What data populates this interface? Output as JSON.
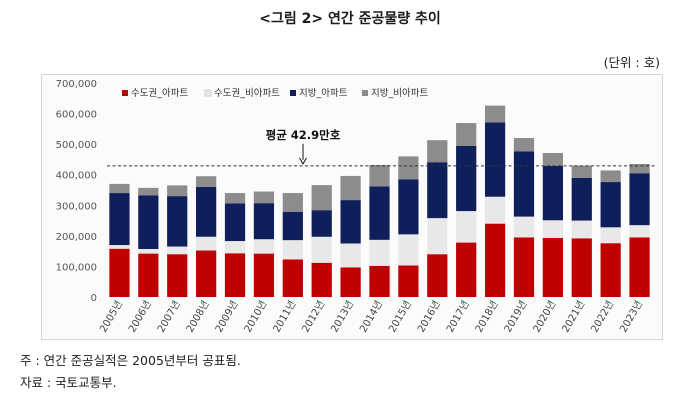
{
  "figure": {
    "title": "<그림 2> 연간 준공물량 추이",
    "unit": "(단위 : 호)",
    "note": "주 : 연간 준공실적은 2005년부터 공표됨.",
    "source": "자료 : 국토교통부."
  },
  "chart_data": {
    "type": "bar",
    "stacked": true,
    "title": "<그림 2> 연간 준공물량 추이",
    "xlabel": "",
    "ylabel": "",
    "ylim": [
      0,
      700000
    ],
    "yticks": [
      0,
      100000,
      200000,
      300000,
      400000,
      500000,
      600000,
      700000
    ],
    "ytick_labels": [
      "0",
      "100,000",
      "200,000",
      "300,000",
      "400,000",
      "500,000",
      "600,000",
      "700,000"
    ],
    "categories": [
      "2005년",
      "2006년",
      "2007년",
      "2008년",
      "2009년",
      "2010년",
      "2011년",
      "2012년",
      "2013년",
      "2014년",
      "2015년",
      "2016년",
      "2017년",
      "2018년",
      "2019년",
      "2020년",
      "2021년",
      "2022년",
      "2023년"
    ],
    "series": [
      {
        "name": "수도권_아파트",
        "color": "#c00000",
        "values": [
          158000,
          142000,
          140000,
          152000,
          143000,
          142000,
          123000,
          112000,
          97000,
          102000,
          103000,
          140000,
          178000,
          240000,
          195000,
          193000,
          192000,
          176000,
          195000
        ]
      },
      {
        "name": "수도권_비아파트",
        "color": "#e8e8e8",
        "values": [
          12000,
          15000,
          25000,
          45000,
          40000,
          47000,
          63000,
          85000,
          78000,
          85000,
          102000,
          118000,
          103000,
          88000,
          68000,
          58000,
          58000,
          52000,
          40000
        ]
      },
      {
        "name": "지방_아파트",
        "color": "#0f1f5c",
        "values": [
          170000,
          175000,
          165000,
          163000,
          123000,
          118000,
          92000,
          87000,
          142000,
          175000,
          180000,
          183000,
          213000,
          243000,
          213000,
          178000,
          140000,
          148000,
          170000
        ]
      },
      {
        "name": "지방_비아파트",
        "color": "#8c8c8c",
        "values": [
          30000,
          25000,
          35000,
          35000,
          34000,
          38000,
          62000,
          82000,
          79000,
          70000,
          75000,
          72000,
          75000,
          55000,
          44000,
          42000,
          40000,
          38000,
          30000
        ]
      }
    ],
    "reference_line": {
      "value": 429000,
      "label": "평균 42.9만호"
    },
    "legend_position": "top-left"
  }
}
